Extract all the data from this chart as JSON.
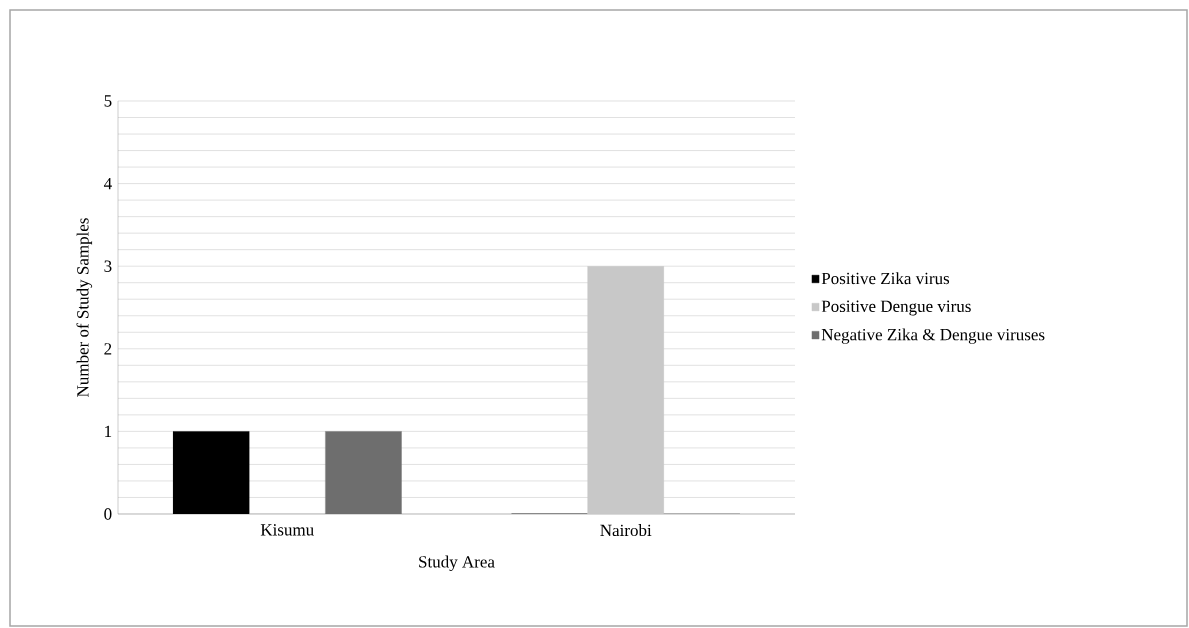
{
  "chart_data": {
    "type": "bar",
    "xlabel": "Study Area",
    "ylabel": "Number of Study Samples",
    "categories": [
      "Kisumu",
      "Nairobi"
    ],
    "series": [
      {
        "name": "Positive Zika virus",
        "color": "#000000",
        "values": [
          1,
          0
        ]
      },
      {
        "name": "Positive Dengue virus",
        "color": "#c8c8c8",
        "values": [
          0,
          3
        ]
      },
      {
        "name": "Negative Zika & Dengue viruses",
        "color": "#6e6e6e",
        "values": [
          1,
          0
        ]
      }
    ],
    "ylim": [
      0,
      5
    ],
    "yticks": [
      0,
      {
        "value": 0.2,
        "label": null
      },
      {
        "value": 0.4,
        "label": null
      },
      {
        "value": 0.6,
        "label": null
      },
      {
        "value": 0.8,
        "label": null
      },
      1,
      {
        "value": 1.2,
        "label": null
      },
      {
        "value": 1.4,
        "label": null
      },
      {
        "value": 1.6,
        "label": null
      },
      {
        "value": 1.8,
        "label": null
      },
      2,
      {
        "value": 2.2,
        "label": null
      },
      {
        "value": 2.4,
        "label": null
      },
      {
        "value": 2.6,
        "label": null
      },
      {
        "value": 2.8,
        "label": null
      },
      3,
      {
        "value": 3.2,
        "label": null
      },
      {
        "value": 3.4,
        "label": null
      },
      {
        "value": 3.6,
        "label": null
      },
      {
        "value": 3.8,
        "label": null
      },
      4,
      {
        "value": 4.2,
        "label": null
      },
      {
        "value": 4.4,
        "label": null
      },
      {
        "value": 4.6,
        "label": null
      },
      {
        "value": 4.8,
        "label": null
      },
      5
    ],
    "grid": "y",
    "legend": "right"
  }
}
